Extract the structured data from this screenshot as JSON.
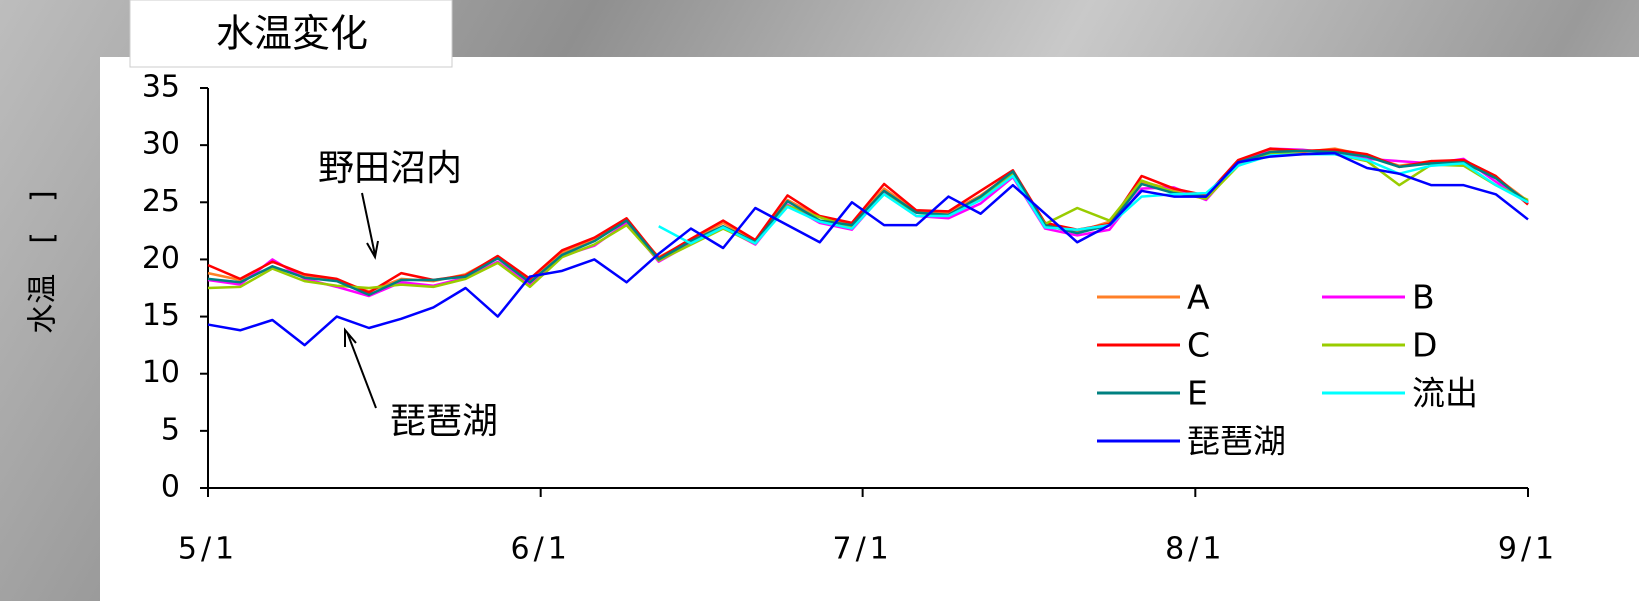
{
  "chart_data": {
    "type": "line",
    "title": "水温変化",
    "y_label": "水温　[　]",
    "x": [
      0,
      3,
      6,
      9,
      12,
      15,
      18,
      21,
      24,
      27,
      30,
      33,
      36,
      39,
      42,
      45,
      48,
      51,
      54,
      57,
      60,
      63,
      66,
      69,
      72,
      75,
      78,
      81,
      84,
      87,
      90,
      93,
      96,
      99,
      102,
      105,
      108,
      111,
      114,
      117,
      120,
      123
    ],
    "xlim": [
      0,
      123
    ],
    "xticks": [
      {
        "value": 0,
        "label": "5/1"
      },
      {
        "value": 31,
        "label": "6/1"
      },
      {
        "value": 61,
        "label": "7/1"
      },
      {
        "value": 92,
        "label": "8/1"
      },
      {
        "value": 123,
        "label": "9/1"
      }
    ],
    "ylim": [
      0,
      35
    ],
    "yticks": [
      0,
      5,
      10,
      15,
      20,
      25,
      30,
      35
    ],
    "annotations": [
      {
        "text": "野田沼内"
      },
      {
        "text": "琵琶湖"
      }
    ],
    "series": [
      {
        "name": "A",
        "color": "#ff7f27",
        "values": [
          18.8,
          18.2,
          19.3,
          18.6,
          18.2,
          17.2,
          18.3,
          18.1,
          18.7,
          20.2,
          18.1,
          20.6,
          21.8,
          23.3,
          20.2,
          21.7,
          23.2,
          21.6,
          25.2,
          23.7,
          23.1,
          26.2,
          24.2,
          24.1,
          25.6,
          27.6,
          23.1,
          22.4,
          23.3,
          26.8,
          26.1,
          25.4,
          28.6,
          29.6,
          29.4,
          29.7,
          29.1,
          28.2,
          28.6,
          28.4,
          27.2,
          25.1
        ]
      },
      {
        "name": "B",
        "color": "#ff00ff",
        "values": [
          18.2,
          17.8,
          20,
          18.3,
          17.6,
          16.8,
          18,
          17.7,
          18.4,
          19.8,
          17.8,
          20.3,
          21.2,
          23.2,
          19.8,
          21.4,
          22.8,
          21.3,
          24.8,
          23.2,
          22.6,
          25.8,
          23.8,
          23.6,
          24.9,
          27.2,
          22.7,
          22.1,
          22.6,
          26.2,
          26.3,
          25.2,
          28.4,
          29.7,
          29.6,
          29.3,
          28.8,
          28.6,
          28.4,
          28.8,
          26.8,
          24.9
        ]
      },
      {
        "name": "C",
        "color": "#ff0000",
        "values": [
          19.5,
          18.3,
          19.8,
          18.7,
          18.3,
          17.1,
          18.8,
          18.2,
          18.6,
          20.3,
          18.3,
          20.8,
          21.9,
          23.6,
          20.1,
          21.8,
          23.4,
          21.7,
          25.6,
          23.8,
          23.2,
          26.6,
          24.3,
          24.2,
          26,
          27.8,
          23.2,
          22.6,
          23.1,
          27.3,
          26.2,
          25.6,
          28.7,
          29.7,
          29.5,
          29.6,
          29.2,
          28.1,
          28.6,
          28.7,
          27.3,
          24.8
        ]
      },
      {
        "name": "D",
        "color": "#99cc00",
        "values": [
          17.5,
          17.6,
          19.2,
          18.1,
          17.7,
          17.5,
          17.8,
          17.6,
          18.3,
          19.7,
          17.6,
          20.2,
          21.3,
          23,
          19.9,
          21.3,
          22.7,
          21.4,
          24.7,
          23.7,
          22.8,
          25.7,
          24.1,
          23.8,
          25.3,
          27.4,
          23.1,
          24.5,
          23.4,
          26.9,
          25.9,
          25.3,
          28.2,
          29.3,
          29.2,
          29.2,
          28.6,
          26.5,
          28.3,
          28.2,
          26.5,
          25.2
        ]
      },
      {
        "name": "E",
        "color": "#008080",
        "values": [
          18.3,
          18,
          19.4,
          18.4,
          18.1,
          16.9,
          18.2,
          18.2,
          18.5,
          20.1,
          18,
          20.4,
          21.6,
          23.4,
          20,
          21.6,
          22.9,
          21.5,
          25.1,
          23.4,
          23,
          26,
          24.1,
          23.9,
          25.5,
          27.7,
          23,
          22.3,
          23,
          26.6,
          25.8,
          25.5,
          28.5,
          29.4,
          29.5,
          29.4,
          29,
          28.1,
          28.4,
          28.5,
          27.1,
          25
        ]
      },
      {
        "name": "流出",
        "color": "#00ffff",
        "values": [
          null,
          null,
          null,
          null,
          null,
          null,
          null,
          null,
          null,
          null,
          null,
          null,
          null,
          null,
          22.9,
          21.4,
          22.8,
          21.4,
          24.6,
          23.3,
          22.7,
          25.7,
          23.8,
          23.8,
          25.2,
          27.3,
          22.8,
          22.6,
          23,
          25.5,
          25.7,
          25.8,
          28.2,
          29.1,
          29.2,
          29.2,
          28.7,
          27.5,
          28.2,
          28.4,
          26.5,
          25
        ]
      },
      {
        "name": "琵琶湖",
        "color": "#0000ff",
        "values": [
          14.3,
          13.8,
          14.7,
          12.5,
          15,
          14,
          14.8,
          15.8,
          17.5,
          15,
          18.5,
          19,
          20,
          18,
          20.5,
          22.7,
          21,
          24.5,
          23,
          21.5,
          25,
          23,
          23,
          25.5,
          24,
          26.5,
          24,
          21.5,
          23,
          26,
          25.5,
          25.5,
          28.5,
          29,
          29.2,
          29.3,
          28,
          27.5,
          26.5,
          26.5,
          25.7,
          23.5
        ]
      }
    ]
  }
}
